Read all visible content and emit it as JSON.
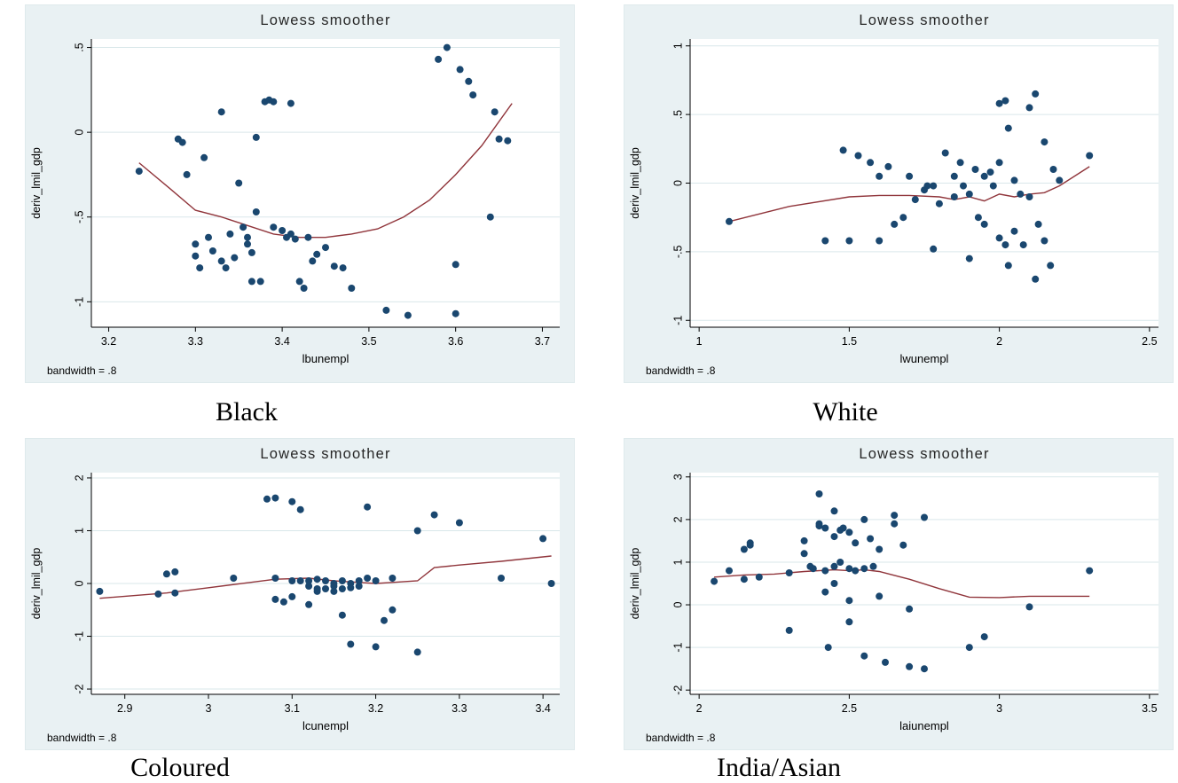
{
  "colors": {
    "panel_bg": "#e9f1f3",
    "plot_bg": "#ffffff",
    "grid": "#d9e7ea",
    "axis": "#000000",
    "point": "#1a476f",
    "line": "#90353b",
    "title": "#262626",
    "text": "#000000"
  },
  "chart_data": [
    {
      "type": "scatter",
      "caption": "Black",
      "title": "Lowess smoother",
      "xlabel": "lbunempl",
      "ylabel": "deriv_lmil_gdp",
      "note": "bandwidth = .8",
      "xlim": [
        3.18,
        3.72
      ],
      "ylim": [
        -1.15,
        0.55
      ],
      "xticks": [
        3.2,
        3.3,
        3.4,
        3.5,
        3.6,
        3.7
      ],
      "xtick_labels": [
        "3.2",
        "3.3",
        "3.4",
        "3.5",
        "3.6",
        "3.7"
      ],
      "yticks": [
        0.5,
        0,
        -0.5,
        -1
      ],
      "ytick_labels": [
        ".5",
        "0",
        "-.5",
        "-1"
      ],
      "legend": "none",
      "grid": "horizontal",
      "points": [
        [
          3.235,
          -0.23
        ],
        [
          3.28,
          -0.04
        ],
        [
          3.285,
          -0.06
        ],
        [
          3.29,
          -0.25
        ],
        [
          3.3,
          -0.66
        ],
        [
          3.3,
          -0.73
        ],
        [
          3.305,
          -0.8
        ],
        [
          3.31,
          -0.15
        ],
        [
          3.315,
          -0.62
        ],
        [
          3.32,
          -0.7
        ],
        [
          3.33,
          0.12
        ],
        [
          3.33,
          -0.76
        ],
        [
          3.335,
          -0.8
        ],
        [
          3.34,
          -0.6
        ],
        [
          3.345,
          -0.74
        ],
        [
          3.35,
          -0.3
        ],
        [
          3.355,
          -0.56
        ],
        [
          3.36,
          -0.62
        ],
        [
          3.36,
          -0.66
        ],
        [
          3.365,
          -0.71
        ],
        [
          3.365,
          -0.88
        ],
        [
          3.37,
          -0.03
        ],
        [
          3.37,
          -0.47
        ],
        [
          3.375,
          -0.88
        ],
        [
          3.38,
          0.18
        ],
        [
          3.385,
          0.19
        ],
        [
          3.39,
          0.18
        ],
        [
          3.39,
          -0.56
        ],
        [
          3.4,
          -0.58
        ],
        [
          3.405,
          -0.62
        ],
        [
          3.41,
          0.17
        ],
        [
          3.41,
          -0.6
        ],
        [
          3.415,
          -0.63
        ],
        [
          3.42,
          -0.88
        ],
        [
          3.425,
          -0.92
        ],
        [
          3.43,
          -0.62
        ],
        [
          3.435,
          -0.76
        ],
        [
          3.44,
          -0.72
        ],
        [
          3.45,
          -0.68
        ],
        [
          3.46,
          -0.79
        ],
        [
          3.47,
          -0.8
        ],
        [
          3.48,
          -0.92
        ],
        [
          3.52,
          -1.05
        ],
        [
          3.545,
          -1.08
        ],
        [
          3.58,
          0.43
        ],
        [
          3.59,
          0.5
        ],
        [
          3.6,
          -1.07
        ],
        [
          3.6,
          -0.78
        ],
        [
          3.605,
          0.37
        ],
        [
          3.615,
          0.3
        ],
        [
          3.62,
          0.22
        ],
        [
          3.64,
          -0.5
        ],
        [
          3.645,
          0.12
        ],
        [
          3.65,
          -0.04
        ],
        [
          3.66,
          -0.05
        ]
      ],
      "lowess": [
        [
          3.235,
          -0.18
        ],
        [
          3.27,
          -0.33
        ],
        [
          3.3,
          -0.46
        ],
        [
          3.33,
          -0.5
        ],
        [
          3.36,
          -0.55
        ],
        [
          3.39,
          -0.6
        ],
        [
          3.42,
          -0.62
        ],
        [
          3.45,
          -0.62
        ],
        [
          3.48,
          -0.6
        ],
        [
          3.51,
          -0.57
        ],
        [
          3.54,
          -0.5
        ],
        [
          3.57,
          -0.4
        ],
        [
          3.6,
          -0.25
        ],
        [
          3.63,
          -0.08
        ],
        [
          3.665,
          0.17
        ]
      ]
    },
    {
      "type": "scatter",
      "caption": "White",
      "title": "Lowess smoother",
      "xlabel": "lwunempl",
      "ylabel": "deriv_lmil_gdp",
      "note": "bandwidth = .8",
      "xlim": [
        0.97,
        2.53
      ],
      "ylim": [
        -1.05,
        1.05
      ],
      "xticks": [
        1,
        1.5,
        2,
        2.5
      ],
      "xtick_labels": [
        "1",
        "1.5",
        "2",
        "2.5"
      ],
      "yticks": [
        1,
        0.5,
        0,
        -0.5,
        -1
      ],
      "ytick_labels": [
        "1",
        ".5",
        "0",
        "-.5",
        "-1"
      ],
      "legend": "none",
      "grid": "horizontal",
      "points": [
        [
          1.1,
          -0.28
        ],
        [
          1.42,
          -0.42
        ],
        [
          1.48,
          0.24
        ],
        [
          1.5,
          -0.42
        ],
        [
          1.53,
          0.2
        ],
        [
          1.57,
          0.15
        ],
        [
          1.6,
          -0.42
        ],
        [
          1.6,
          0.05
        ],
        [
          1.63,
          0.12
        ],
        [
          1.65,
          -0.3
        ],
        [
          1.68,
          -0.25
        ],
        [
          1.7,
          0.05
        ],
        [
          1.72,
          -0.12
        ],
        [
          1.75,
          -0.05
        ],
        [
          1.76,
          -0.02
        ],
        [
          1.78,
          -0.02
        ],
        [
          1.78,
          -0.48
        ],
        [
          1.8,
          -0.15
        ],
        [
          1.82,
          0.22
        ],
        [
          1.85,
          0.05
        ],
        [
          1.85,
          -0.1
        ],
        [
          1.87,
          0.15
        ],
        [
          1.88,
          -0.02
        ],
        [
          1.9,
          -0.08
        ],
        [
          1.9,
          -0.55
        ],
        [
          1.92,
          0.1
        ],
        [
          1.93,
          -0.25
        ],
        [
          1.95,
          -0.3
        ],
        [
          1.95,
          0.05
        ],
        [
          1.97,
          0.08
        ],
        [
          1.98,
          -0.02
        ],
        [
          2.0,
          0.58
        ],
        [
          2.0,
          0.15
        ],
        [
          2.0,
          -0.4
        ],
        [
          2.02,
          0.6
        ],
        [
          2.02,
          -0.45
        ],
        [
          2.03,
          0.4
        ],
        [
          2.03,
          -0.6
        ],
        [
          2.05,
          0.02
        ],
        [
          2.05,
          -0.35
        ],
        [
          2.07,
          -0.08
        ],
        [
          2.08,
          -0.45
        ],
        [
          2.1,
          0.55
        ],
        [
          2.1,
          -0.1
        ],
        [
          2.12,
          0.65
        ],
        [
          2.12,
          -0.7
        ],
        [
          2.13,
          -0.3
        ],
        [
          2.15,
          0.3
        ],
        [
          2.15,
          -0.42
        ],
        [
          2.17,
          -0.6
        ],
        [
          2.18,
          0.1
        ],
        [
          2.2,
          0.02
        ],
        [
          2.3,
          0.2
        ]
      ],
      "lowess": [
        [
          1.1,
          -0.28
        ],
        [
          1.3,
          -0.17
        ],
        [
          1.5,
          -0.1
        ],
        [
          1.6,
          -0.09
        ],
        [
          1.7,
          -0.09
        ],
        [
          1.8,
          -0.1
        ],
        [
          1.85,
          -0.12
        ],
        [
          1.9,
          -0.1
        ],
        [
          1.95,
          -0.13
        ],
        [
          2.0,
          -0.08
        ],
        [
          2.05,
          -0.1
        ],
        [
          2.1,
          -0.08
        ],
        [
          2.15,
          -0.07
        ],
        [
          2.2,
          -0.02
        ],
        [
          2.3,
          0.12
        ]
      ]
    },
    {
      "type": "scatter",
      "caption": "Coloured",
      "title": "Lowess smoother",
      "xlabel": "lcunempl",
      "ylabel": "deriv_lmil_gdp",
      "note": "bandwidth = .8",
      "xlim": [
        2.86,
        3.42
      ],
      "ylim": [
        -2.1,
        2.1
      ],
      "xticks": [
        2.9,
        3,
        3.1,
        3.2,
        3.3,
        3.4
      ],
      "xtick_labels": [
        "2.9",
        "3",
        "3.1",
        "3.2",
        "3.3",
        "3.4"
      ],
      "yticks": [
        2,
        1,
        0,
        -1,
        -2
      ],
      "ytick_labels": [
        "2",
        "1",
        "0",
        "-1",
        "-2"
      ],
      "legend": "none",
      "grid": "horizontal",
      "points": [
        [
          2.87,
          -0.15
        ],
        [
          2.94,
          -0.2
        ],
        [
          2.95,
          0.18
        ],
        [
          2.96,
          0.22
        ],
        [
          2.96,
          -0.18
        ],
        [
          3.03,
          0.1
        ],
        [
          3.07,
          1.6
        ],
        [
          3.08,
          1.62
        ],
        [
          3.08,
          0.1
        ],
        [
          3.08,
          -0.3
        ],
        [
          3.09,
          -0.35
        ],
        [
          3.1,
          1.55
        ],
        [
          3.1,
          0.05
        ],
        [
          3.1,
          -0.25
        ],
        [
          3.11,
          1.4
        ],
        [
          3.11,
          0.05
        ],
        [
          3.12,
          0.05
        ],
        [
          3.12,
          -0.4
        ],
        [
          3.12,
          -0.05
        ],
        [
          3.13,
          0.08
        ],
        [
          3.13,
          -0.1
        ],
        [
          3.13,
          -0.15
        ],
        [
          3.14,
          0.05
        ],
        [
          3.14,
          -0.1
        ],
        [
          3.15,
          0.0
        ],
        [
          3.15,
          -0.05
        ],
        [
          3.15,
          -0.15
        ],
        [
          3.16,
          0.05
        ],
        [
          3.16,
          -0.1
        ],
        [
          3.16,
          -0.6
        ],
        [
          3.17,
          0.0
        ],
        [
          3.17,
          -0.08
        ],
        [
          3.17,
          -1.15
        ],
        [
          3.18,
          0.05
        ],
        [
          3.18,
          -0.05
        ],
        [
          3.19,
          1.45
        ],
        [
          3.19,
          0.1
        ],
        [
          3.2,
          0.05
        ],
        [
          3.2,
          -1.2
        ],
        [
          3.21,
          -0.7
        ],
        [
          3.22,
          -0.5
        ],
        [
          3.22,
          0.1
        ],
        [
          3.25,
          1.0
        ],
        [
          3.25,
          -1.3
        ],
        [
          3.27,
          1.3
        ],
        [
          3.3,
          1.15
        ],
        [
          3.35,
          0.1
        ],
        [
          3.4,
          0.85
        ],
        [
          3.41,
          0.0
        ]
      ],
      "lowess": [
        [
          2.87,
          -0.28
        ],
        [
          2.95,
          -0.18
        ],
        [
          3.0,
          -0.08
        ],
        [
          3.05,
          0.02
        ],
        [
          3.08,
          0.08
        ],
        [
          3.12,
          0.1
        ],
        [
          3.15,
          0.05
        ],
        [
          3.18,
          0.02
        ],
        [
          3.2,
          0.0
        ],
        [
          3.22,
          0.02
        ],
        [
          3.25,
          0.05
        ],
        [
          3.27,
          0.3
        ],
        [
          3.3,
          0.35
        ],
        [
          3.35,
          0.42
        ],
        [
          3.41,
          0.52
        ]
      ]
    },
    {
      "type": "scatter",
      "caption": "India/Asian",
      "title": "Lowess smoother",
      "xlabel": "laiunempl",
      "ylabel": "deriv_lmil_gdp",
      "note": "bandwidth = .8",
      "xlim": [
        1.97,
        3.53
      ],
      "ylim": [
        -2.1,
        3.1
      ],
      "xticks": [
        2,
        2.5,
        3,
        3.5
      ],
      "xtick_labels": [
        "2",
        "2.5",
        "3",
        "3.5"
      ],
      "yticks": [
        3,
        2,
        1,
        0,
        -1,
        -2
      ],
      "ytick_labels": [
        "3",
        "2",
        "1",
        "0",
        "-1",
        "-2"
      ],
      "legend": "none",
      "grid": "horizontal",
      "points": [
        [
          2.05,
          0.55
        ],
        [
          2.1,
          0.8
        ],
        [
          2.15,
          1.3
        ],
        [
          2.15,
          0.6
        ],
        [
          2.17,
          1.45
        ],
        [
          2.17,
          1.4
        ],
        [
          2.2,
          0.65
        ],
        [
          2.3,
          0.75
        ],
        [
          2.3,
          -0.6
        ],
        [
          2.35,
          1.5
        ],
        [
          2.35,
          1.2
        ],
        [
          2.37,
          0.9
        ],
        [
          2.38,
          0.85
        ],
        [
          2.4,
          2.6
        ],
        [
          2.4,
          1.9
        ],
        [
          2.4,
          1.85
        ],
        [
          2.42,
          1.8
        ],
        [
          2.42,
          0.8
        ],
        [
          2.42,
          0.3
        ],
        [
          2.43,
          -1.0
        ],
        [
          2.45,
          2.2
        ],
        [
          2.45,
          1.6
        ],
        [
          2.45,
          0.9
        ],
        [
          2.45,
          0.5
        ],
        [
          2.47,
          1.75
        ],
        [
          2.47,
          1.0
        ],
        [
          2.48,
          1.8
        ],
        [
          2.5,
          1.7
        ],
        [
          2.5,
          0.85
        ],
        [
          2.5,
          0.1
        ],
        [
          2.5,
          -0.4
        ],
        [
          2.52,
          1.45
        ],
        [
          2.52,
          0.8
        ],
        [
          2.55,
          2.0
        ],
        [
          2.55,
          0.85
        ],
        [
          2.55,
          -1.2
        ],
        [
          2.57,
          1.55
        ],
        [
          2.58,
          0.9
        ],
        [
          2.6,
          1.3
        ],
        [
          2.6,
          0.2
        ],
        [
          2.62,
          -1.35
        ],
        [
          2.65,
          2.1
        ],
        [
          2.65,
          1.9
        ],
        [
          2.68,
          1.4
        ],
        [
          2.7,
          -0.1
        ],
        [
          2.7,
          -1.45
        ],
        [
          2.75,
          2.05
        ],
        [
          2.75,
          -1.5
        ],
        [
          2.9,
          -1.0
        ],
        [
          2.95,
          -0.75
        ],
        [
          3.1,
          -0.05
        ],
        [
          3.3,
          0.8
        ]
      ],
      "lowess": [
        [
          2.05,
          0.65
        ],
        [
          2.15,
          0.7
        ],
        [
          2.25,
          0.72
        ],
        [
          2.35,
          0.78
        ],
        [
          2.45,
          0.82
        ],
        [
          2.5,
          0.8
        ],
        [
          2.55,
          0.82
        ],
        [
          2.6,
          0.78
        ],
        [
          2.7,
          0.6
        ],
        [
          2.8,
          0.38
        ],
        [
          2.9,
          0.18
        ],
        [
          3.0,
          0.17
        ],
        [
          3.1,
          0.2
        ],
        [
          3.2,
          0.2
        ],
        [
          3.3,
          0.2
        ]
      ]
    }
  ]
}
